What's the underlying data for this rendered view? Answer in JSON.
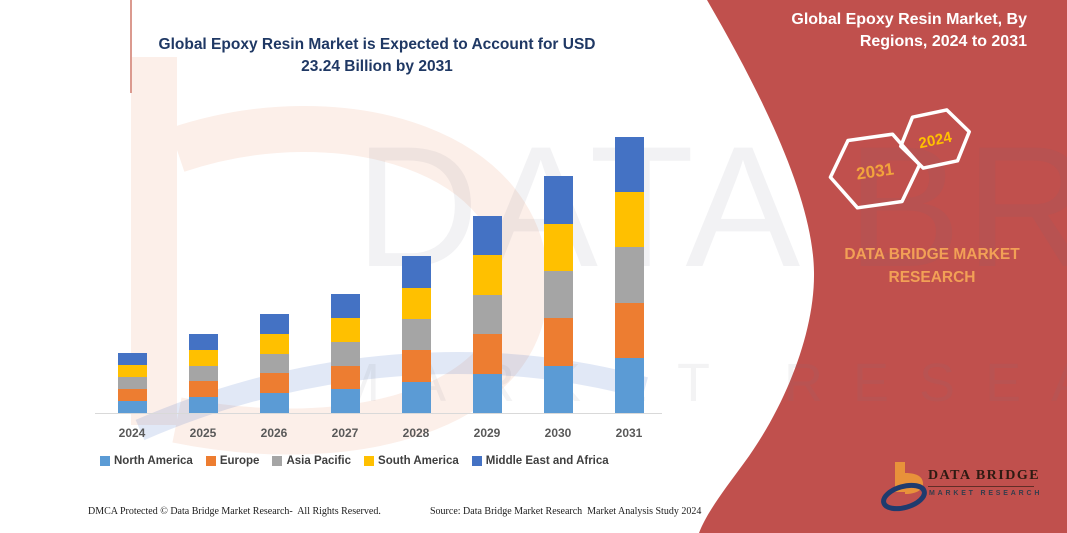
{
  "header": {
    "chart_title": "Global Epoxy Resin Market is Expected to Account for USD 23.24 Billion by 2031"
  },
  "sidebar": {
    "heading": "Global Epoxy Resin Market, By Regions, 2024 to 2031",
    "hexagon_back_label": "2031",
    "hexagon_front_label": "2024",
    "brand_text": "DATA BRIDGE MARKET RESEARCH",
    "logo_name": "DATA BRIDGE",
    "logo_tagline": "MARKET RESEARCH"
  },
  "watermark": {
    "big_text": "DATA BRIDGE",
    "sub_text": "MARKET RESEARCH"
  },
  "footer": {
    "left": "DMCA Protected © Data Bridge Market Research-  All Rights Reserved.",
    "right": "Source: Data Bridge Market Research  Market Analysis Study 2024"
  },
  "colors": {
    "panel_red": "#C0504D",
    "title_navy": "#1F3864",
    "hexagon_back_year": "#F2A33C",
    "hexagon_front_year": "#FFC000",
    "brand_orange": "#F2A056",
    "axis_line": "#D9D9D9",
    "axis_label": "#595959",
    "legend_text": "#3F3F3F"
  },
  "chart_data": {
    "type": "bar",
    "stacked": true,
    "title": "Global Epoxy Resin Market is Expected to Account for USD 23.24 Billion by 2031",
    "unit": "USD Billion",
    "xlabel": "",
    "ylabel": "",
    "grid": false,
    "legend_position": "bottom",
    "categories": [
      "2024",
      "2025",
      "2026",
      "2027",
      "2028",
      "2029",
      "2030",
      "2031"
    ],
    "series": [
      {
        "name": "North America",
        "color": "#5B9BD5",
        "values": [
          1.01,
          1.33,
          1.67,
          2.0,
          2.64,
          3.32,
          3.99,
          4.65
        ]
      },
      {
        "name": "Europe",
        "color": "#ED7D31",
        "values": [
          1.01,
          1.33,
          1.67,
          2.0,
          2.64,
          3.32,
          3.99,
          4.65
        ]
      },
      {
        "name": "Asia Pacific",
        "color": "#A5A5A5",
        "values": [
          1.01,
          1.33,
          1.67,
          2.0,
          2.64,
          3.32,
          3.99,
          4.65
        ]
      },
      {
        "name": "South America",
        "color": "#FFC000",
        "values": [
          1.01,
          1.33,
          1.67,
          2.0,
          2.64,
          3.32,
          3.99,
          4.65
        ]
      },
      {
        "name": "Middle East and Africa",
        "color": "#4472C4",
        "values": [
          1.01,
          1.33,
          1.67,
          2.0,
          2.64,
          3.32,
          3.99,
          4.65
        ]
      }
    ],
    "totals_estimated": [
      5.05,
      6.65,
      8.35,
      10.0,
      13.2,
      16.6,
      19.95,
      23.24
    ],
    "final_year_total_label": "USD 23.24 Billion by 2031"
  }
}
